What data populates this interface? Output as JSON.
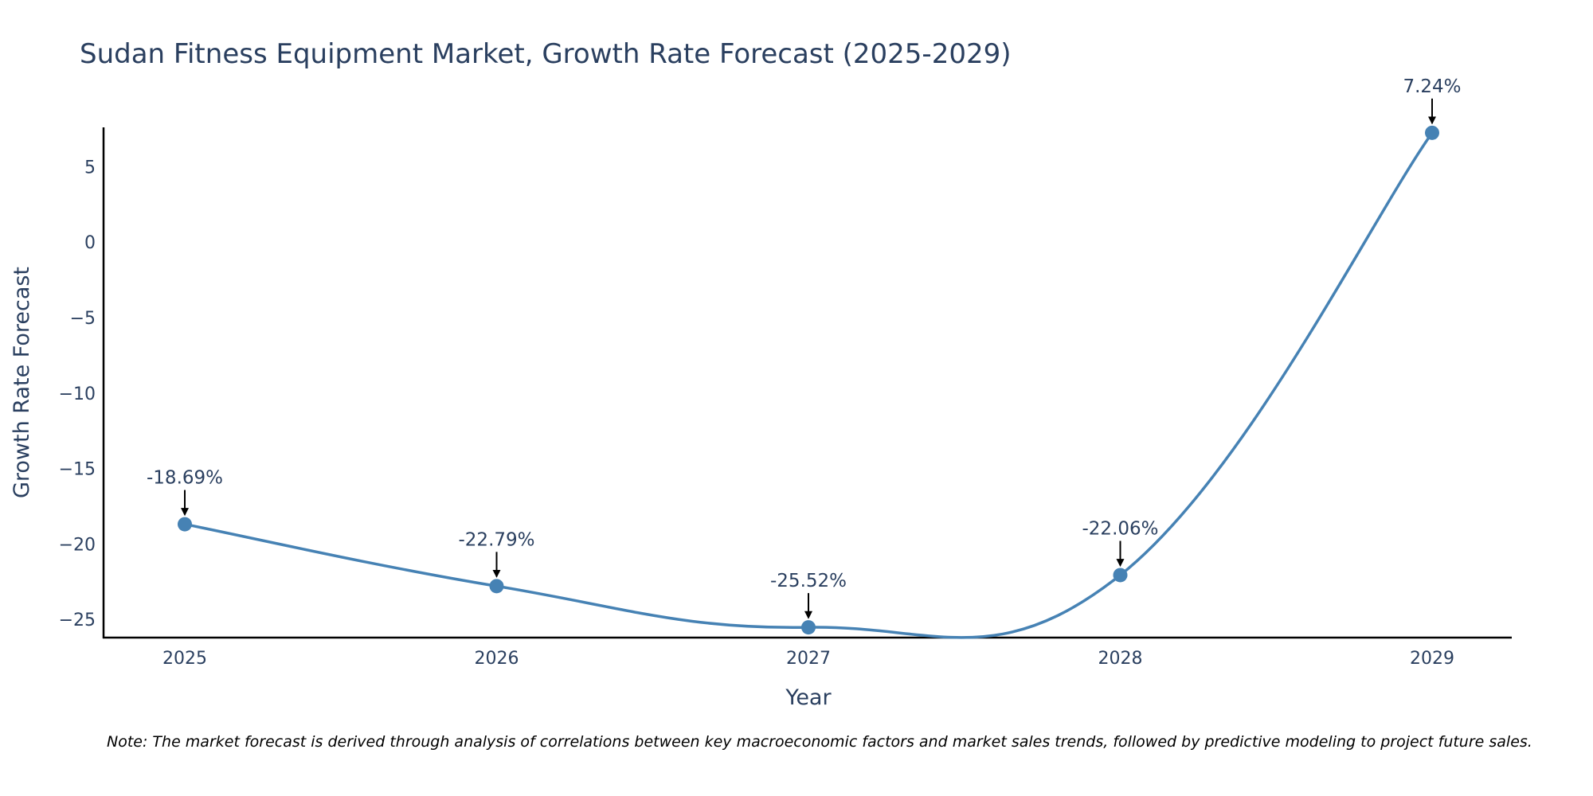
{
  "chart_data": {
    "type": "line",
    "title": "Sudan Fitness Equipment Market, Growth Rate Forecast (2025-2029)",
    "xlabel": "Year",
    "ylabel": "Growth Rate Forecast",
    "categories": [
      "2025",
      "2026",
      "2027",
      "2028",
      "2029"
    ],
    "series": [
      {
        "name": "Growth Rate Forecast",
        "values": [
          -18.69,
          -22.79,
          -25.52,
          -22.06,
          7.24
        ],
        "labels": [
          "-18.69%",
          "-22.79%",
          "-25.52%",
          "-22.06%",
          "7.24%"
        ]
      }
    ],
    "y_ticks": [
      5,
      0,
      -5,
      -10,
      -15,
      -20,
      -25
    ],
    "y_tick_labels": [
      "5",
      "0",
      "−5",
      "−10",
      "−15",
      "−20",
      "−25"
    ],
    "ylim": [
      -26.2,
      7.6
    ],
    "grid": false,
    "line_color": "#4682b4",
    "annotation_color": "#000000"
  },
  "note": "Note: The market forecast is derived through analysis of correlations between key macroeconomic factors and market sales trends, followed by predictive modeling to project future sales."
}
